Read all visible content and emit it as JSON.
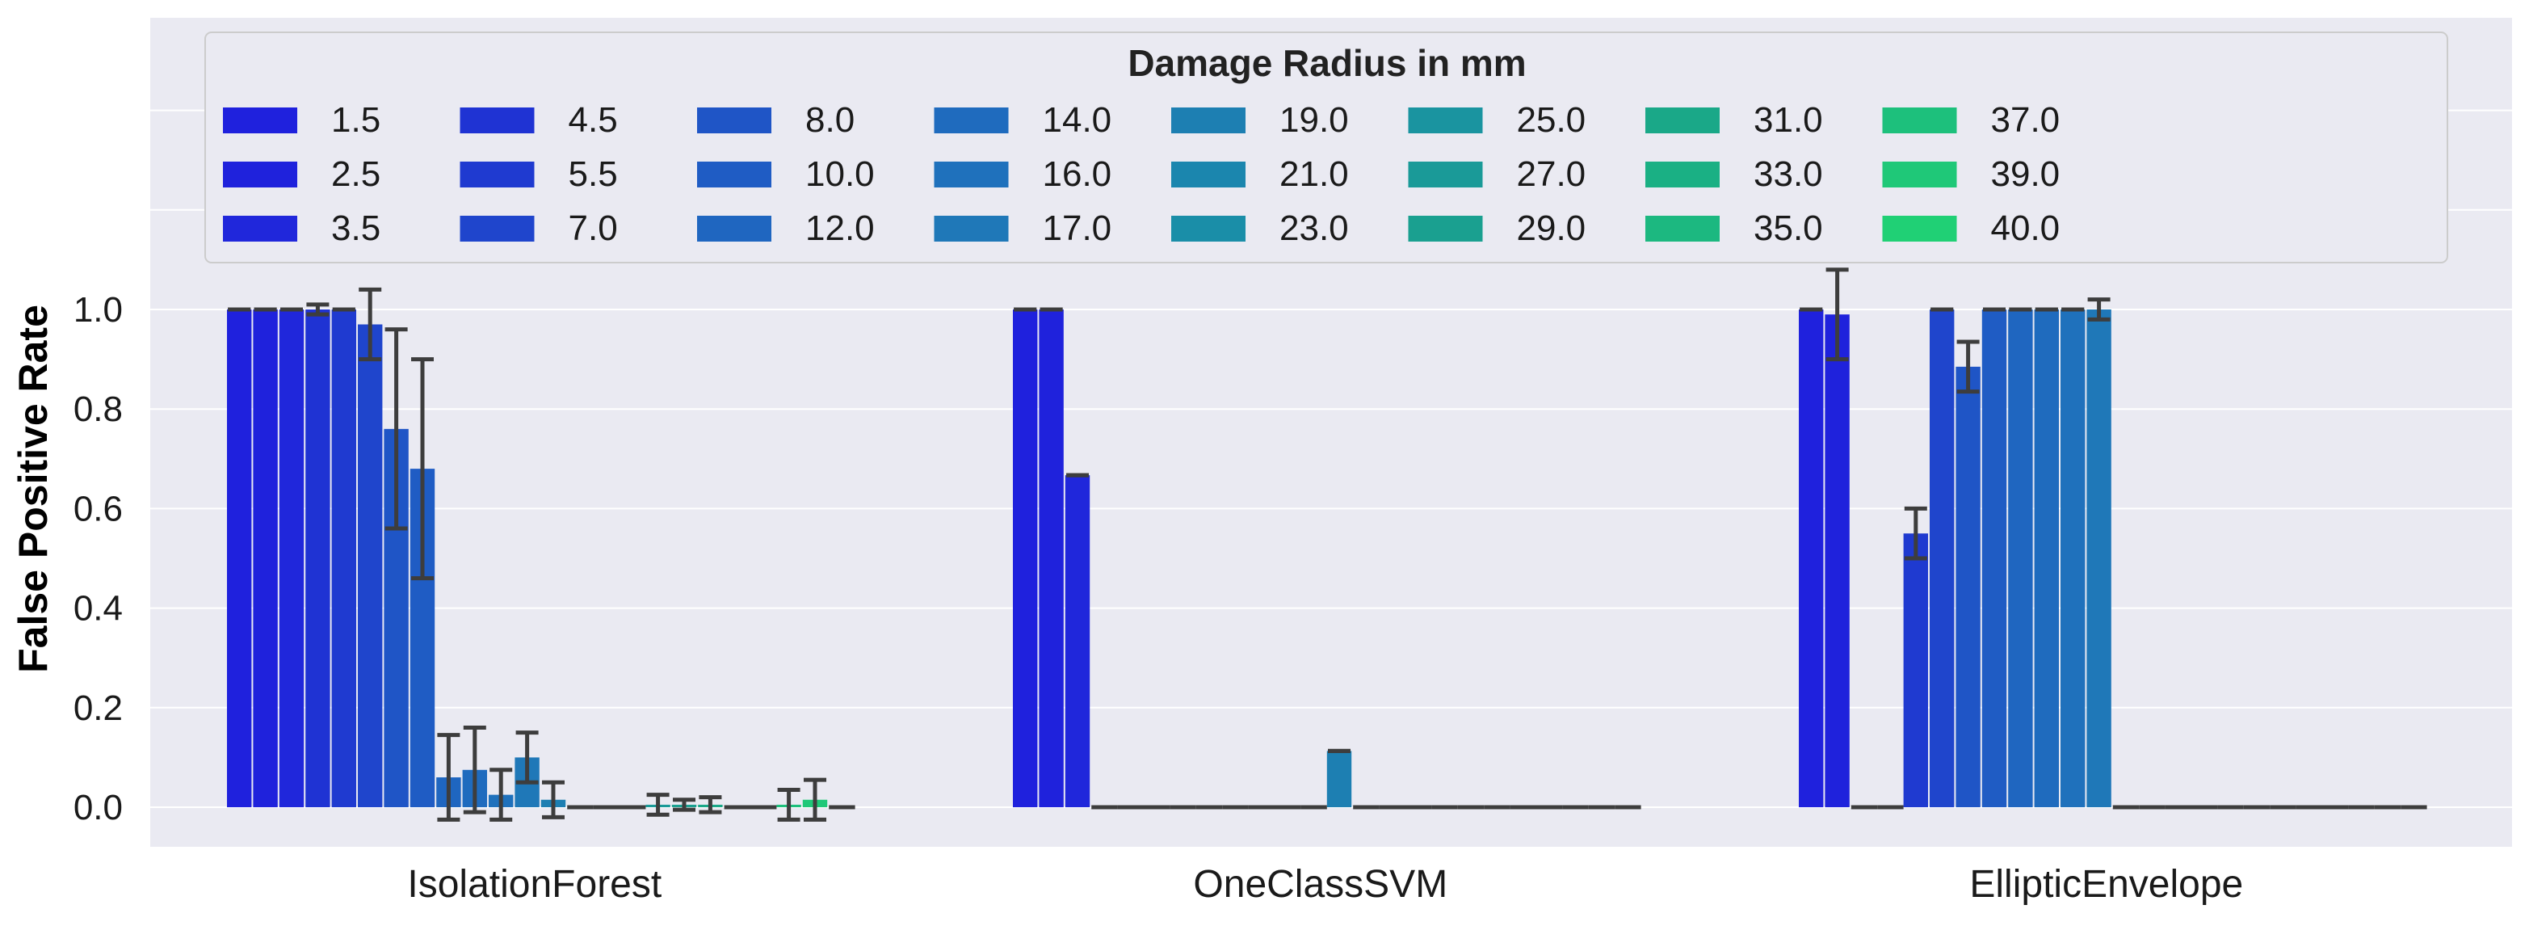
{
  "chart_data": {
    "type": "bar",
    "title": "",
    "xlabel": "",
    "ylabel": "False Positive Rate",
    "ylim": [
      -0.08,
      1.55
    ],
    "yticks": [
      0.0,
      0.2,
      0.4,
      0.6,
      0.8,
      1.0
    ],
    "ytick_labels": [
      "0.0",
      "0.2",
      "0.4",
      "0.6",
      "0.8",
      "1.0"
    ],
    "grid": true,
    "legend": {
      "title": "Damage Radius in mm",
      "placement": "top",
      "columns": 9
    },
    "categories": [
      "IsolationForest",
      "OneClassSVM",
      "EllipticEnvelope"
    ],
    "series": [
      {
        "name": "1.5",
        "color": "#1f21dd",
        "values": [
          1.0,
          1.0,
          1.0
        ],
        "err": [
          0.0,
          0.0,
          0.0
        ]
      },
      {
        "name": "2.5",
        "color": "#1f22dc",
        "values": [
          1.0,
          1.0,
          0.99
        ],
        "err": [
          0.0,
          0.0,
          0.09
        ]
      },
      {
        "name": "3.5",
        "color": "#2027db",
        "values": [
          1.0,
          0.667,
          0.0
        ],
        "err": [
          0.0,
          0.0,
          0.0
        ]
      },
      {
        "name": "4.5",
        "color": "#1f33d3",
        "values": [
          1.0,
          0.0,
          0.0
        ],
        "err": [
          0.01,
          0.0,
          0.0
        ]
      },
      {
        "name": "5.5",
        "color": "#1f3ad0",
        "values": [
          1.0,
          0.0,
          0.55
        ],
        "err": [
          0.0,
          0.0,
          0.05
        ]
      },
      {
        "name": "7.0",
        "color": "#1f45cc",
        "values": [
          0.97,
          0.0,
          1.0
        ],
        "err": [
          0.07,
          0.0,
          0.0
        ]
      },
      {
        "name": "8.0",
        "color": "#1f55c6",
        "values": [
          0.76,
          0.0,
          0.885
        ],
        "err": [
          0.2,
          0.0,
          0.05
        ]
      },
      {
        "name": "10.0",
        "color": "#1f5cc4",
        "values": [
          0.68,
          0.0,
          1.0
        ],
        "err": [
          0.22,
          0.0,
          0.0
        ]
      },
      {
        "name": "12.0",
        "color": "#1f66c0",
        "values": [
          0.06,
          0.0,
          1.0
        ],
        "err": [
          0.085,
          0.0,
          0.0
        ]
      },
      {
        "name": "14.0",
        "color": "#1f6bbe",
        "values": [
          0.075,
          0.0,
          1.0
        ],
        "err": [
          0.085,
          0.0,
          0.0
        ]
      },
      {
        "name": "16.0",
        "color": "#1f71bc",
        "values": [
          0.025,
          0.0,
          1.0
        ],
        "err": [
          0.05,
          0.0,
          0.0
        ]
      },
      {
        "name": "17.0",
        "color": "#1f78b8",
        "values": [
          0.1,
          0.0,
          1.0
        ],
        "err": [
          0.05,
          0.0,
          0.02
        ]
      },
      {
        "name": "19.0",
        "color": "#1d7fb2",
        "values": [
          0.015,
          0.113,
          0.0
        ],
        "err": [
          0.035,
          0.0,
          0.0
        ]
      },
      {
        "name": "21.0",
        "color": "#1b86ae",
        "values": [
          0.0,
          0.0,
          0.0
        ],
        "err": [
          0.0,
          0.0,
          0.0
        ]
      },
      {
        "name": "23.0",
        "color": "#1a8ea8",
        "values": [
          0.0,
          0.0,
          0.0
        ],
        "err": [
          0.0,
          0.0,
          0.0
        ]
      },
      {
        "name": "25.0",
        "color": "#1a94a0",
        "values": [
          0.0,
          0.0,
          0.0
        ],
        "err": [
          0.0,
          0.0,
          0.0
        ]
      },
      {
        "name": "27.0",
        "color": "#1a9a98",
        "values": [
          0.005,
          0.0,
          0.0
        ],
        "err": [
          0.02,
          0.0,
          0.0
        ]
      },
      {
        "name": "29.0",
        "color": "#1aa090",
        "values": [
          0.005,
          0.0,
          0.0
        ],
        "err": [
          0.01,
          0.0,
          0.0
        ]
      },
      {
        "name": "31.0",
        "color": "#1aa888",
        "values": [
          0.005,
          0.0,
          0.0
        ],
        "err": [
          0.015,
          0.0,
          0.0
        ]
      },
      {
        "name": "33.0",
        "color": "#1ab084",
        "values": [
          0.0,
          0.0,
          0.0
        ],
        "err": [
          0.0,
          0.0,
          0.0
        ]
      },
      {
        "name": "35.0",
        "color": "#1cb880",
        "values": [
          0.0,
          0.0,
          0.0
        ],
        "err": [
          0.0,
          0.0,
          0.0
        ]
      },
      {
        "name": "37.0",
        "color": "#1dc07c",
        "values": [
          0.005,
          0.0,
          0.0
        ],
        "err": [
          0.03,
          0.0,
          0.0
        ]
      },
      {
        "name": "39.0",
        "color": "#1fc878",
        "values": [
          0.015,
          0.0,
          0.0
        ],
        "err": [
          0.04,
          0.0,
          0.0
        ]
      },
      {
        "name": "40.0",
        "color": "#20d075",
        "values": [
          0.0,
          0.0,
          0.0
        ],
        "err": [
          0.0,
          0.0,
          0.0
        ]
      }
    ]
  },
  "colors": {
    "background": "#eaeaf2",
    "grid": "#ffffff",
    "errorbar": "#3d3d3d",
    "legend_bg": "#eaeaf2",
    "legend_border": "#cccccc"
  }
}
